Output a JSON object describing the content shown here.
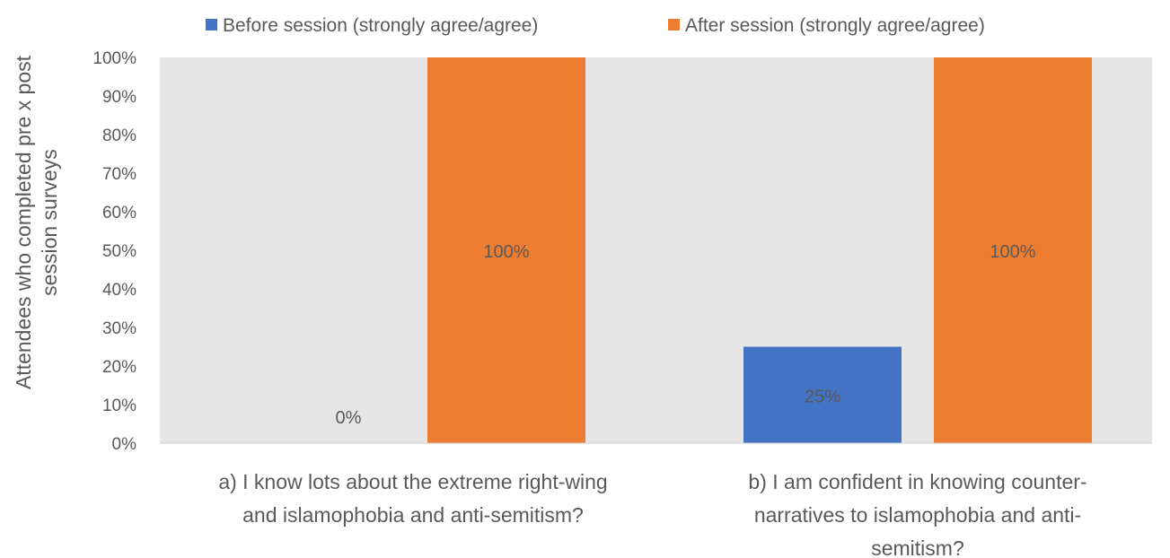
{
  "chart_data": {
    "type": "bar",
    "categories": [
      [
        "a) I know lots about the extreme right-wing",
        "and islamophobia and anti-semitism?"
      ],
      [
        "b) I am confident in knowing counter-",
        "narratives to islamophobia and anti-",
        "semitism?"
      ]
    ],
    "series": [
      {
        "name": "Before session (strongly agree/agree)",
        "values": [
          0,
          25
        ],
        "labels": [
          "0%",
          "25%"
        ],
        "color": "#4472C4"
      },
      {
        "name": "After session (strongly agree/agree)",
        "values": [
          100,
          100
        ],
        "labels": [
          "100%",
          "100%"
        ],
        "color": "#ED7D31"
      }
    ],
    "ylabel": [
      "Attendees who completed pre x post",
      "session surveys"
    ],
    "ylim": [
      0,
      100
    ],
    "yticks": [
      0,
      10,
      20,
      30,
      40,
      50,
      60,
      70,
      80,
      90,
      100
    ],
    "ytick_labels": [
      "0%",
      "10%",
      "20%",
      "30%",
      "40%",
      "50%",
      "60%",
      "70%",
      "80%",
      "90%",
      "100%"
    ],
    "legend_position": "top",
    "plot_background": "#E7E6E6",
    "grid": false
  }
}
